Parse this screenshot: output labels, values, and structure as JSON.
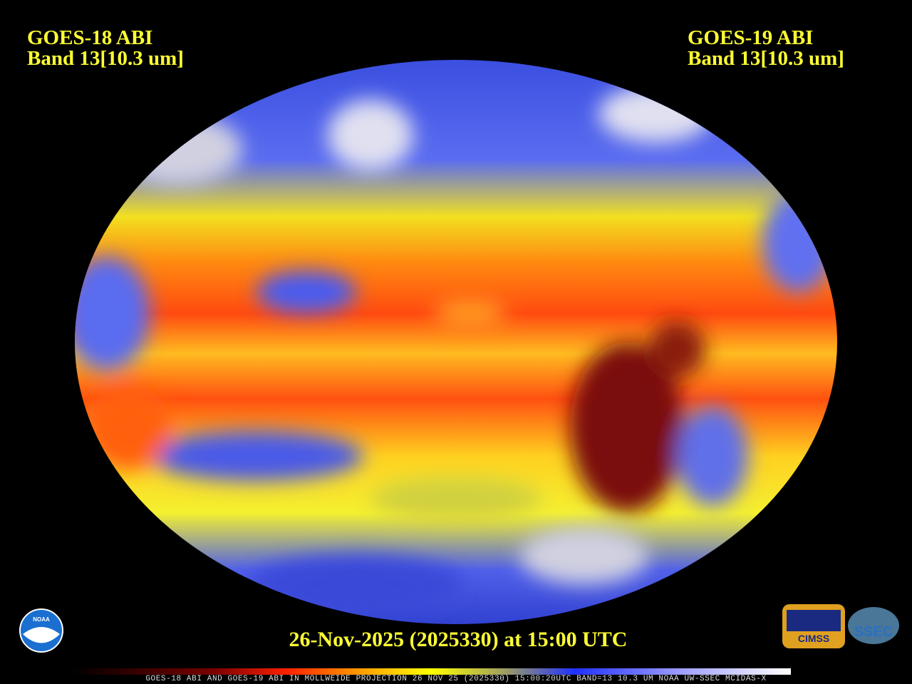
{
  "header": {
    "left": {
      "line1": "GOES-18 ABI",
      "line2": "Band 13[10.3 um]"
    },
    "right": {
      "line1": "GOES-19 ABI",
      "line2": "Band 13[10.3 um]"
    }
  },
  "timestamp": "26-Nov-2025 (2025330) at 15:00 UTC",
  "footer": "GOES-18 ABI AND GOES-19 ABI IN MOLLWEIDE PROJECTION 26 NOV 25 (2025330) 15:00:20UTC BAND=13 10.3 UM NOAA UW-SSEC MCIDAS-X",
  "logos": {
    "noaa": "NOAA",
    "cimss": "CIMSS",
    "ssec": "SSEC"
  }
}
